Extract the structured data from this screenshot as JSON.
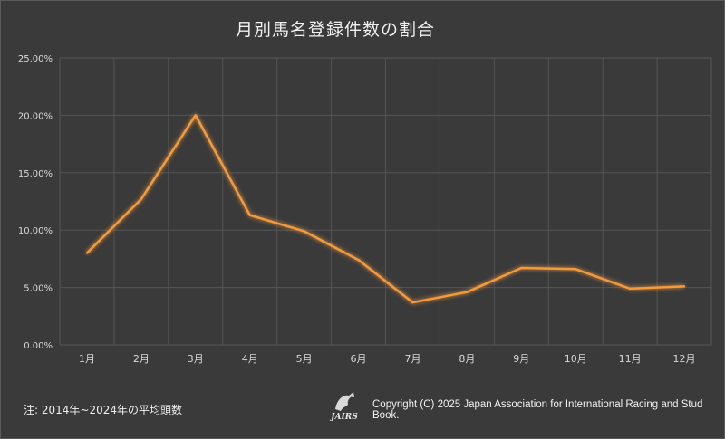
{
  "chart_data": {
    "type": "line",
    "title": "月別馬名登録件数の割合",
    "categories": [
      "1月",
      "2月",
      "3月",
      "4月",
      "5月",
      "6月",
      "7月",
      "8月",
      "9月",
      "10月",
      "11月",
      "12月"
    ],
    "series": [
      {
        "values": [
          8.0,
          12.7,
          20.0,
          11.3,
          9.9,
          7.4,
          3.7,
          4.6,
          6.7,
          6.6,
          4.9,
          5.1
        ]
      }
    ],
    "ylim": [
      0,
      25
    ],
    "yticks": [
      "0.00%",
      "5.00%",
      "10.00%",
      "15.00%",
      "20.00%",
      "25.00%"
    ],
    "grid": true,
    "legend": "none",
    "colors": {
      "line": "#f39a3e",
      "grid": "#555555",
      "background": "#3a3a3a"
    }
  },
  "footer": {
    "note": "注: 2014年~2024年の平均頭数",
    "logo_text": "JAIRS",
    "copyright": "Copyright (C) 2025 Japan Association for International Racing and Stud Book."
  }
}
